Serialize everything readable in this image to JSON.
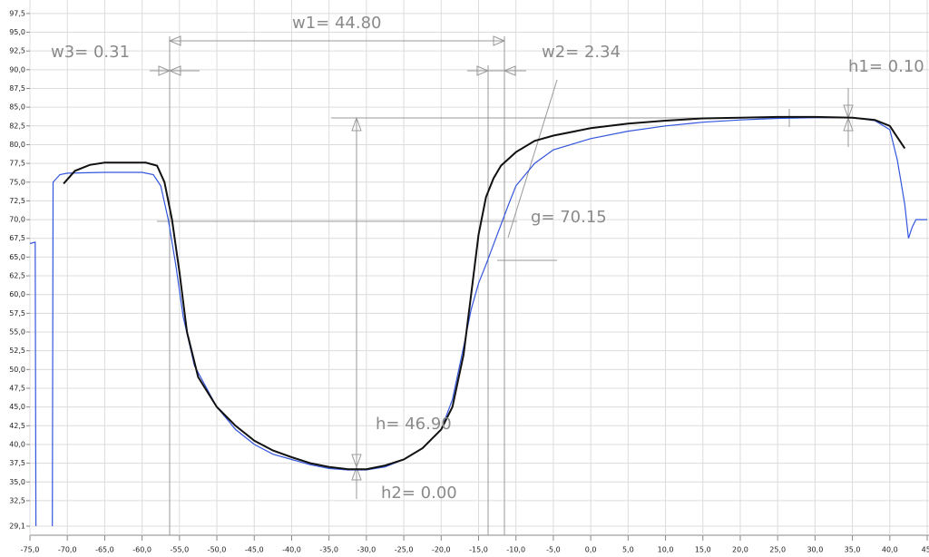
{
  "chart_data": {
    "type": "line",
    "xlim": [
      -75,
      45
    ],
    "ylim": [
      29.1,
      99.3
    ],
    "grid": true,
    "xticks": [
      {
        "value": -75,
        "label": "-75,0"
      },
      {
        "value": -70,
        "label": "-70,0"
      },
      {
        "value": -65,
        "label": "-65,0"
      },
      {
        "value": -60,
        "label": "-60,0"
      },
      {
        "value": -55,
        "label": "-55,0"
      },
      {
        "value": -50,
        "label": "-50,0"
      },
      {
        "value": -45,
        "label": "-45,0"
      },
      {
        "value": -40,
        "label": "-40,0"
      },
      {
        "value": -35,
        "label": "-35,0"
      },
      {
        "value": -30,
        "label": "-30,0"
      },
      {
        "value": -25,
        "label": "-25,0"
      },
      {
        "value": -20,
        "label": "-20,0"
      },
      {
        "value": -15,
        "label": "-15,0"
      },
      {
        "value": -10,
        "label": "-10,0"
      },
      {
        "value": -5,
        "label": "-5,0"
      },
      {
        "value": 0,
        "label": "0,0"
      },
      {
        "value": 5,
        "label": "5,0"
      },
      {
        "value": 10,
        "label": "10,0"
      },
      {
        "value": 15,
        "label": "15,0"
      },
      {
        "value": 20,
        "label": "20,0"
      },
      {
        "value": 25,
        "label": "25,0"
      },
      {
        "value": 30,
        "label": "30,0"
      },
      {
        "value": 35,
        "label": "35,0"
      },
      {
        "value": 40,
        "label": "40,0"
      },
      {
        "value": 45,
        "label": "45,"
      }
    ],
    "yticks": [
      {
        "value": 29.1,
        "label": "29,1"
      },
      {
        "value": 32.5,
        "label": "32,5"
      },
      {
        "value": 35,
        "label": "35,0"
      },
      {
        "value": 37.5,
        "label": "37,5"
      },
      {
        "value": 40,
        "label": "40,0"
      },
      {
        "value": 42.5,
        "label": "42,5"
      },
      {
        "value": 45,
        "label": "45,0"
      },
      {
        "value": 47.5,
        "label": "47,5"
      },
      {
        "value": 50,
        "label": "50,0"
      },
      {
        "value": 52.5,
        "label": "52,5"
      },
      {
        "value": 55,
        "label": "55,0"
      },
      {
        "value": 57.5,
        "label": "57,5"
      },
      {
        "value": 60,
        "label": "60,0"
      },
      {
        "value": 62.5,
        "label": "62,5"
      },
      {
        "value": 65,
        "label": "65,0"
      },
      {
        "value": 67.5,
        "label": "67,5"
      },
      {
        "value": 70,
        "label": "70,0"
      },
      {
        "value": 72.5,
        "label": "72,5"
      },
      {
        "value": 75,
        "label": "75,0"
      },
      {
        "value": 77.5,
        "label": "77,5"
      },
      {
        "value": 80,
        "label": "80,0"
      },
      {
        "value": 82.5,
        "label": "82,5"
      },
      {
        "value": 85,
        "label": "85,0"
      },
      {
        "value": 87.5,
        "label": "87,5"
      },
      {
        "value": 90,
        "label": "90,0"
      },
      {
        "value": 92.5,
        "label": "92,5"
      },
      {
        "value": 95,
        "label": "95,0"
      },
      {
        "value": 97.5,
        "label": "97,5"
      }
    ],
    "series": [
      {
        "color": "#3355dd",
        "x": [
          -75,
          -74.3,
          -74.2,
          null,
          -72,
          -71.9,
          -71,
          -70,
          -65,
          -60,
          -58.5,
          -57.5,
          -56.5,
          -55.5,
          -54.5,
          -53,
          -50,
          -47.5,
          -45,
          -42.5,
          -40,
          -37.5,
          -35,
          -32.5,
          -30,
          -27.5,
          -25,
          -22.5,
          -20,
          -18.5,
          -17,
          -16,
          -15,
          -14,
          -12.5,
          -11,
          -10,
          -7.5,
          -5,
          0,
          5,
          10,
          15,
          20,
          25,
          30,
          35,
          38,
          40,
          41,
          41.5,
          42,
          42.5,
          43,
          43.5,
          45
        ],
        "values": [
          66.8,
          67,
          29.1,
          null,
          29.1,
          75,
          76,
          76.2,
          76.3,
          76.3,
          76,
          74.5,
          70,
          64,
          57,
          50.5,
          45,
          42,
          40,
          38.7,
          38,
          37.3,
          36.8,
          36.6,
          36.6,
          37,
          38,
          39.5,
          42,
          46,
          53,
          58,
          61.5,
          64,
          68,
          72,
          74.5,
          77.5,
          79.3,
          80.8,
          81.8,
          82.5,
          83,
          83.3,
          83.5,
          83.6,
          83.6,
          83.2,
          82,
          78,
          75,
          72,
          67.5,
          69,
          70,
          70
        ]
      },
      {
        "color": "#111111",
        "x": [
          -70.5,
          -69,
          -67,
          -65,
          -62,
          -59.5,
          -58,
          -57,
          -56,
          -55,
          -54,
          -52.5,
          -50,
          -47.5,
          -45,
          -42.5,
          -40,
          -37.5,
          -35,
          -32.5,
          -30,
          -27.5,
          -25,
          -22.5,
          -20,
          -18.5,
          -17,
          -16,
          -15,
          -14,
          -13,
          -12,
          -10,
          -7.5,
          -5,
          0,
          5,
          10,
          15,
          20,
          25,
          30,
          35,
          38,
          40,
          41,
          42
        ],
        "values": [
          74.8,
          76.5,
          77.3,
          77.6,
          77.6,
          77.6,
          77.2,
          75,
          70,
          63,
          55,
          49,
          45,
          42.5,
          40.5,
          39.2,
          38.3,
          37.5,
          37,
          36.7,
          36.7,
          37.2,
          38,
          39.5,
          42,
          45,
          52,
          60,
          68,
          73,
          75.5,
          77.2,
          79,
          80.5,
          81.2,
          82.2,
          82.8,
          83.2,
          83.5,
          83.6,
          83.7,
          83.7,
          83.6,
          83.3,
          82.5,
          81,
          79.5
        ]
      }
    ],
    "annotations": [
      "w1= 44.80",
      "w3= 0.31",
      "w2= 2.34",
      "h1= 0.10",
      "g= 70.15",
      "h= 46.90",
      "h2= 0.00"
    ]
  }
}
